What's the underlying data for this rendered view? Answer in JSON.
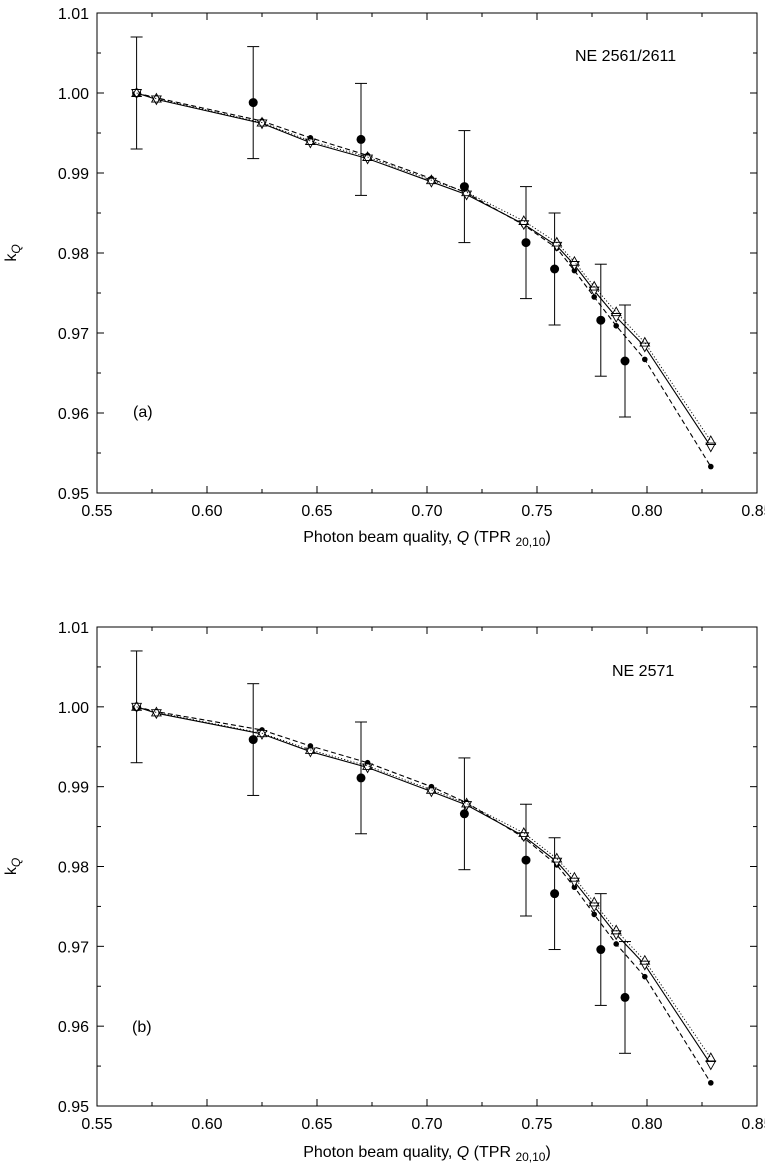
{
  "chart_data": [
    {
      "type": "scatter",
      "panel_label": "(a)",
      "annotation": "NE 2561/2611",
      "xlabel": {
        "main": "Photon beam quality, ",
        "italic": "Q",
        "paren": " (TPR ",
        "sub": "20,10",
        "close": ")"
      },
      "ylabel": {
        "main": "k",
        "sub": "Q"
      },
      "xlim": [
        0.55,
        0.85
      ],
      "ylim": [
        0.95,
        1.01
      ],
      "x_ticks": [
        "0.55",
        "0.60",
        "0.65",
        "0.70",
        "0.75",
        "0.80",
        "0.85"
      ],
      "y_ticks": [
        "0.95",
        "0.96",
        "0.97",
        "0.98",
        "0.99",
        "1.00",
        "1.01"
      ],
      "grid": false,
      "series": [
        {
          "style": "filled-circle-errorbar",
          "points": [
            {
              "x": 0.568,
              "y": 1.0,
              "err": 0.007
            },
            {
              "x": 0.621,
              "y": 0.9988,
              "err": 0.007
            },
            {
              "x": 0.67,
              "y": 0.9942,
              "err": 0.007
            },
            {
              "x": 0.717,
              "y": 0.9883,
              "err": 0.007
            },
            {
              "x": 0.745,
              "y": 0.9813,
              "err": 0.007
            },
            {
              "x": 0.758,
              "y": 0.978,
              "err": 0.007
            },
            {
              "x": 0.779,
              "y": 0.9716,
              "err": 0.007
            },
            {
              "x": 0.79,
              "y": 0.9665,
              "err": 0.007
            }
          ]
        },
        {
          "style": "small-dot-dashed",
          "points": [
            {
              "x": 0.568,
              "y": 1.0
            },
            {
              "x": 0.577,
              "y": 0.9994
            },
            {
              "x": 0.625,
              "y": 0.9965
            },
            {
              "x": 0.647,
              "y": 0.9944
            },
            {
              "x": 0.673,
              "y": 0.9922
            },
            {
              "x": 0.702,
              "y": 0.9893
            },
            {
              "x": 0.718,
              "y": 0.9875
            },
            {
              "x": 0.744,
              "y": 0.9835
            },
            {
              "x": 0.759,
              "y": 0.9806
            },
            {
              "x": 0.767,
              "y": 0.9778
            },
            {
              "x": 0.776,
              "y": 0.9745
            },
            {
              "x": 0.786,
              "y": 0.9709
            },
            {
              "x": 0.799,
              "y": 0.9667
            },
            {
              "x": 0.829,
              "y": 0.9533
            }
          ]
        },
        {
          "style": "open-triangle-down-solid",
          "points": [
            {
              "x": 0.568,
              "y": 1.0
            },
            {
              "x": 0.577,
              "y": 0.9992
            },
            {
              "x": 0.625,
              "y": 0.9962
            },
            {
              "x": 0.647,
              "y": 0.9938
            },
            {
              "x": 0.673,
              "y": 0.9918
            },
            {
              "x": 0.702,
              "y": 0.9889
            },
            {
              "x": 0.718,
              "y": 0.9873
            },
            {
              "x": 0.744,
              "y": 0.9836
            },
            {
              "x": 0.759,
              "y": 0.9809
            },
            {
              "x": 0.767,
              "y": 0.9785
            },
            {
              "x": 0.776,
              "y": 0.9753
            },
            {
              "x": 0.786,
              "y": 0.972
            },
            {
              "x": 0.799,
              "y": 0.9683
            },
            {
              "x": 0.829,
              "y": 0.9558
            }
          ]
        },
        {
          "style": "open-triangle-up-dotted",
          "points": [
            {
              "x": 0.568,
              "y": 1.0
            },
            {
              "x": 0.577,
              "y": 0.9993
            },
            {
              "x": 0.625,
              "y": 0.9963
            },
            {
              "x": 0.647,
              "y": 0.994
            },
            {
              "x": 0.673,
              "y": 0.992
            },
            {
              "x": 0.702,
              "y": 0.9891
            },
            {
              "x": 0.718,
              "y": 0.9876
            },
            {
              "x": 0.744,
              "y": 0.984
            },
            {
              "x": 0.759,
              "y": 0.9813
            },
            {
              "x": 0.767,
              "y": 0.9789
            },
            {
              "x": 0.776,
              "y": 0.9758
            },
            {
              "x": 0.786,
              "y": 0.9726
            },
            {
              "x": 0.799,
              "y": 0.9688
            },
            {
              "x": 0.829,
              "y": 0.9565
            }
          ]
        }
      ]
    },
    {
      "type": "scatter",
      "panel_label": "(b)",
      "annotation": "NE 2571",
      "xlabel": {
        "main": "Photon beam quality, ",
        "italic": "Q",
        "paren": " (TPR ",
        "sub": "20,10",
        "close": ")"
      },
      "ylabel": {
        "main": "k",
        "sub": "Q"
      },
      "xlim": [
        0.55,
        0.85
      ],
      "ylim": [
        0.95,
        1.01
      ],
      "x_ticks": [
        "0.55",
        "0.60",
        "0.65",
        "0.70",
        "0.75",
        "0.80",
        "0.85"
      ],
      "y_ticks": [
        "0.95",
        "0.96",
        "0.97",
        "0.98",
        "0.99",
        "1.00",
        "1.01"
      ],
      "grid": false,
      "series": [
        {
          "style": "filled-circle-errorbar",
          "points": [
            {
              "x": 0.568,
              "y": 1.0,
              "err": 0.007
            },
            {
              "x": 0.621,
              "y": 0.9959,
              "err": 0.007
            },
            {
              "x": 0.67,
              "y": 0.9911,
              "err": 0.007
            },
            {
              "x": 0.717,
              "y": 0.9866,
              "err": 0.007
            },
            {
              "x": 0.745,
              "y": 0.9808,
              "err": 0.007
            },
            {
              "x": 0.758,
              "y": 0.9766,
              "err": 0.007
            },
            {
              "x": 0.779,
              "y": 0.9696,
              "err": 0.007
            },
            {
              "x": 0.79,
              "y": 0.9636,
              "err": 0.007
            }
          ]
        },
        {
          "style": "small-dot-dashed",
          "points": [
            {
              "x": 0.568,
              "y": 1.0
            },
            {
              "x": 0.577,
              "y": 0.9994
            },
            {
              "x": 0.625,
              "y": 0.9971
            },
            {
              "x": 0.647,
              "y": 0.9951
            },
            {
              "x": 0.673,
              "y": 0.993
            },
            {
              "x": 0.702,
              "y": 0.99
            },
            {
              "x": 0.718,
              "y": 0.988
            },
            {
              "x": 0.744,
              "y": 0.9836
            },
            {
              "x": 0.759,
              "y": 0.9802
            },
            {
              "x": 0.767,
              "y": 0.9774
            },
            {
              "x": 0.776,
              "y": 0.974
            },
            {
              "x": 0.786,
              "y": 0.9703
            },
            {
              "x": 0.799,
              "y": 0.9662
            },
            {
              "x": 0.829,
              "y": 0.9529
            }
          ]
        },
        {
          "style": "open-triangle-down-solid",
          "points": [
            {
              "x": 0.568,
              "y": 1.0
            },
            {
              "x": 0.577,
              "y": 0.9992
            },
            {
              "x": 0.625,
              "y": 0.9966
            },
            {
              "x": 0.647,
              "y": 0.9944
            },
            {
              "x": 0.673,
              "y": 0.9924
            },
            {
              "x": 0.702,
              "y": 0.9894
            },
            {
              "x": 0.718,
              "y": 0.9877
            },
            {
              "x": 0.744,
              "y": 0.9838
            },
            {
              "x": 0.759,
              "y": 0.9806
            },
            {
              "x": 0.767,
              "y": 0.9781
            },
            {
              "x": 0.776,
              "y": 0.975
            },
            {
              "x": 0.786,
              "y": 0.9715
            },
            {
              "x": 0.799,
              "y": 0.9677
            },
            {
              "x": 0.829,
              "y": 0.9552
            }
          ]
        },
        {
          "style": "open-triangle-up-dotted",
          "points": [
            {
              "x": 0.568,
              "y": 1.0
            },
            {
              "x": 0.577,
              "y": 0.9993
            },
            {
              "x": 0.625,
              "y": 0.9967
            },
            {
              "x": 0.647,
              "y": 0.9946
            },
            {
              "x": 0.673,
              "y": 0.9926
            },
            {
              "x": 0.702,
              "y": 0.9896
            },
            {
              "x": 0.718,
              "y": 0.9879
            },
            {
              "x": 0.744,
              "y": 0.9842
            },
            {
              "x": 0.759,
              "y": 0.981
            },
            {
              "x": 0.767,
              "y": 0.9786
            },
            {
              "x": 0.776,
              "y": 0.9755
            },
            {
              "x": 0.786,
              "y": 0.972
            },
            {
              "x": 0.799,
              "y": 0.9682
            },
            {
              "x": 0.829,
              "y": 0.956
            }
          ]
        }
      ]
    }
  ]
}
